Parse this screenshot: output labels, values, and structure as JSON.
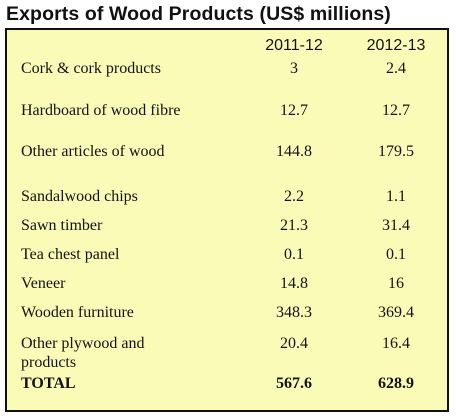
{
  "title": "Exports of Wood Products (US$ millions)",
  "chart_data": {
    "type": "table",
    "columns": [
      "2011-12",
      "2012-13"
    ],
    "rows": [
      {
        "label": "Cork & cork products",
        "values": [
          "3",
          "2.4"
        ]
      },
      {
        "label": "Hardboard of wood fibre",
        "values": [
          "12.7",
          "12.7"
        ]
      },
      {
        "label": "Other articles of wood",
        "values": [
          "144.8",
          "179.5"
        ]
      },
      {
        "label": "Sandalwood chips",
        "values": [
          "2.2",
          "1.1"
        ]
      },
      {
        "label": "Sawn timber",
        "values": [
          "21.3",
          "31.4"
        ]
      },
      {
        "label": "Tea chest panel",
        "values": [
          "0.1",
          "0.1"
        ]
      },
      {
        "label": "Veneer",
        "values": [
          "14.8",
          "16"
        ]
      },
      {
        "label": "Wooden furniture",
        "values": [
          "348.3",
          "369.4"
        ]
      },
      {
        "label_lines": [
          "Other plywood and",
          "products"
        ],
        "values": [
          "20.4",
          "16.4"
        ]
      }
    ],
    "total": {
      "label": "TOTAL",
      "values": [
        "567.6",
        "628.9"
      ]
    }
  },
  "colors": {
    "panel_background": "#fbfbb8",
    "border": "#111111",
    "text": "#111111"
  }
}
